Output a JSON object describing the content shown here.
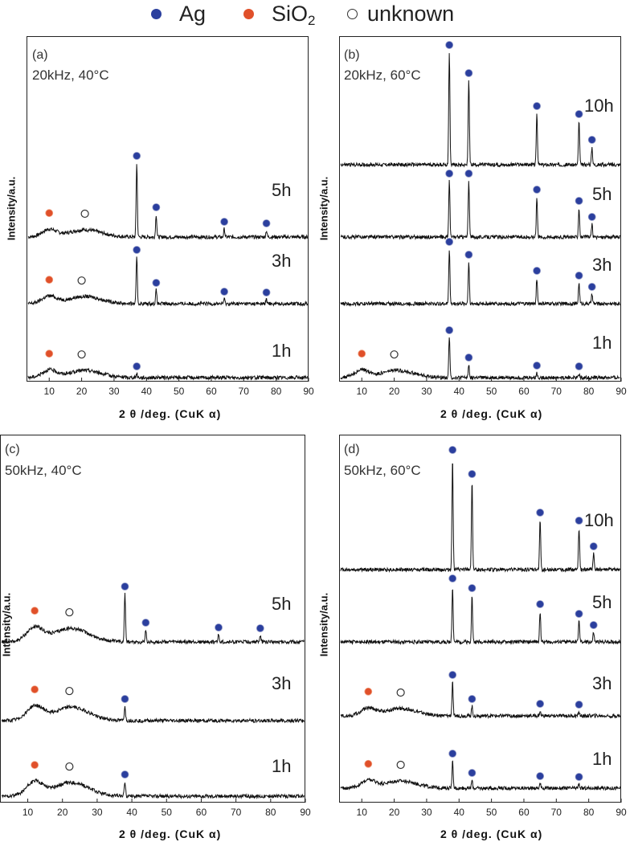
{
  "legend": {
    "items": [
      {
        "label": "Ag",
        "color": "#2b3f9e",
        "marker": "filled"
      },
      {
        "label": "SiO",
        "sub": "2",
        "color": "#e0502a",
        "marker": "filled"
      },
      {
        "label": "unknown",
        "color": "#ffffff",
        "marker": "open"
      }
    ]
  },
  "common": {
    "ylabel": "Intensity/a.u.",
    "xlabel": "2 θ /deg. (CuK α)",
    "x_ticks": [
      10,
      20,
      30,
      40,
      50,
      60,
      70,
      80,
      90
    ],
    "xlim": [
      3,
      90
    ]
  },
  "chart_data": [
    {
      "type": "line",
      "panel": "(a)",
      "title": "20kHz, 40°C",
      "xlabel": "2 θ /deg. (CuK α)",
      "ylabel": "Intensity/a.u.",
      "x_ticks": [
        10,
        20,
        30,
        40,
        50,
        60,
        70,
        80,
        90
      ],
      "series": [
        {
          "name": "5h",
          "peaks": [
            {
              "x": 37,
              "h": 92,
              "phase": "Ag"
            },
            {
              "x": 43,
              "h": 28,
              "phase": "Ag"
            },
            {
              "x": 64,
              "h": 10,
              "phase": "Ag"
            },
            {
              "x": 77,
              "h": 8,
              "phase": "Ag"
            }
          ],
          "markers": [
            {
              "x": 10,
              "phase": "SiO2"
            },
            {
              "x": 21,
              "phase": "unknown"
            },
            {
              "x": 37,
              "phase": "Ag"
            },
            {
              "x": 43,
              "phase": "Ag"
            },
            {
              "x": 64,
              "phase": "Ag"
            },
            {
              "x": 77,
              "phase": "Ag"
            }
          ]
        },
        {
          "name": "3h",
          "peaks": [
            {
              "x": 37,
              "h": 58,
              "phase": "Ag"
            },
            {
              "x": 43,
              "h": 17,
              "phase": "Ag"
            },
            {
              "x": 64,
              "h": 6,
              "phase": "Ag"
            },
            {
              "x": 77,
              "h": 5,
              "phase": "Ag"
            }
          ],
          "markers": [
            {
              "x": 10,
              "phase": "SiO2"
            },
            {
              "x": 20,
              "phase": "unknown"
            },
            {
              "x": 37,
              "phase": "Ag"
            },
            {
              "x": 43,
              "phase": "Ag"
            },
            {
              "x": 64,
              "phase": "Ag"
            },
            {
              "x": 77,
              "phase": "Ag"
            }
          ]
        },
        {
          "name": "1h",
          "peaks": [
            {
              "x": 37,
              "h": 5,
              "phase": "Ag"
            }
          ],
          "markers": [
            {
              "x": 10,
              "phase": "SiO2"
            },
            {
              "x": 20,
              "phase": "unknown"
            },
            {
              "x": 37,
              "phase": "Ag"
            }
          ]
        }
      ]
    },
    {
      "type": "line",
      "panel": "(b)",
      "title": "20kHz, 60°C",
      "xlabel": "2 θ /deg. (CuK α)",
      "ylabel": "Intensity/a.u.",
      "x_ticks": [
        10,
        20,
        30,
        40,
        50,
        60,
        70,
        80,
        90
      ],
      "series": [
        {
          "name": "10h",
          "peaks": [
            {
              "x": 37,
              "h": 140,
              "phase": "Ag"
            },
            {
              "x": 43,
              "h": 105,
              "phase": "Ag"
            },
            {
              "x": 64,
              "h": 64,
              "phase": "Ag"
            },
            {
              "x": 77,
              "h": 54,
              "phase": "Ag"
            },
            {
              "x": 81,
              "h": 22,
              "phase": "Ag"
            }
          ],
          "markers": [
            {
              "x": 37,
              "phase": "Ag"
            },
            {
              "x": 43,
              "phase": "Ag"
            },
            {
              "x": 64,
              "phase": "Ag"
            },
            {
              "x": 77,
              "phase": "Ag"
            },
            {
              "x": 81,
              "phase": "Ag"
            }
          ]
        },
        {
          "name": "5h",
          "peaks": [
            {
              "x": 37,
              "h": 70,
              "phase": "Ag"
            },
            {
              "x": 43,
              "h": 70,
              "phase": "Ag"
            },
            {
              "x": 64,
              "h": 50,
              "phase": "Ag"
            },
            {
              "x": 77,
              "h": 36,
              "phase": "Ag"
            },
            {
              "x": 81,
              "h": 16,
              "phase": "Ag"
            }
          ],
          "markers": [
            {
              "x": 37,
              "phase": "Ag"
            },
            {
              "x": 43,
              "phase": "Ag"
            },
            {
              "x": 64,
              "phase": "Ag"
            },
            {
              "x": 77,
              "phase": "Ag"
            },
            {
              "x": 81,
              "phase": "Ag"
            }
          ]
        },
        {
          "name": "3h",
          "peaks": [
            {
              "x": 37,
              "h": 68,
              "phase": "Ag"
            },
            {
              "x": 43,
              "h": 52,
              "phase": "Ag"
            },
            {
              "x": 64,
              "h": 32,
              "phase": "Ag"
            },
            {
              "x": 77,
              "h": 26,
              "phase": "Ag"
            },
            {
              "x": 81,
              "h": 12,
              "phase": "Ag"
            }
          ],
          "markers": [
            {
              "x": 37,
              "phase": "Ag"
            },
            {
              "x": 43,
              "phase": "Ag"
            },
            {
              "x": 64,
              "phase": "Ag"
            },
            {
              "x": 77,
              "phase": "Ag"
            },
            {
              "x": 81,
              "phase": "Ag"
            }
          ]
        },
        {
          "name": "1h",
          "peaks": [
            {
              "x": 37,
              "h": 50,
              "phase": "Ag"
            },
            {
              "x": 43,
              "h": 16,
              "phase": "Ag"
            },
            {
              "x": 64,
              "h": 6,
              "phase": "Ag"
            },
            {
              "x": 77,
              "h": 5,
              "phase": "Ag"
            }
          ],
          "markers": [
            {
              "x": 10,
              "phase": "SiO2"
            },
            {
              "x": 20,
              "phase": "unknown"
            },
            {
              "x": 37,
              "phase": "Ag"
            },
            {
              "x": 43,
              "phase": "Ag"
            },
            {
              "x": 64,
              "phase": "Ag"
            },
            {
              "x": 77,
              "phase": "Ag"
            }
          ]
        }
      ]
    },
    {
      "type": "line",
      "panel": "(c)",
      "title": "50kHz, 40°C",
      "xlabel": "2 θ /deg. (CuK α)",
      "ylabel": "Intensity/a.u.",
      "x_ticks": [
        10,
        20,
        30,
        40,
        50,
        60,
        70,
        80,
        90
      ],
      "series": [
        {
          "name": "5h",
          "peaks": [
            {
              "x": 38,
              "h": 60,
              "phase": "Ag"
            },
            {
              "x": 44,
              "h": 15,
              "phase": "Ag"
            },
            {
              "x": 65,
              "h": 9,
              "phase": "Ag"
            },
            {
              "x": 77,
              "h": 8,
              "phase": "Ag"
            }
          ],
          "markers": [
            {
              "x": 12,
              "phase": "SiO2"
            },
            {
              "x": 22,
              "phase": "unknown"
            },
            {
              "x": 38,
              "phase": "Ag"
            },
            {
              "x": 44,
              "phase": "Ag"
            },
            {
              "x": 65,
              "phase": "Ag"
            },
            {
              "x": 77,
              "phase": "Ag"
            }
          ]
        },
        {
          "name": "3h",
          "peaks": [
            {
              "x": 38,
              "h": 18,
              "phase": "Ag"
            }
          ],
          "markers": [
            {
              "x": 12,
              "phase": "SiO2"
            },
            {
              "x": 22,
              "phase": "unknown"
            },
            {
              "x": 38,
              "phase": "Ag"
            }
          ]
        },
        {
          "name": "1h",
          "peaks": [
            {
              "x": 38,
              "h": 18,
              "phase": "Ag"
            }
          ],
          "markers": [
            {
              "x": 12,
              "phase": "SiO2"
            },
            {
              "x": 22,
              "phase": "unknown"
            },
            {
              "x": 38,
              "phase": "Ag"
            }
          ]
        }
      ]
    },
    {
      "type": "line",
      "panel": "(d)",
      "title": "50kHz, 60°C",
      "xlabel": "2 θ /deg. (CuK α)",
      "ylabel": "Intensity/a.u.",
      "x_ticks": [
        10,
        20,
        30,
        40,
        50,
        60,
        70,
        80,
        90
      ],
      "series": [
        {
          "name": "10h",
          "peaks": [
            {
              "x": 38,
              "h": 140,
              "phase": "Ag"
            },
            {
              "x": 44,
              "h": 110,
              "phase": "Ag"
            },
            {
              "x": 65,
              "h": 62,
              "phase": "Ag"
            },
            {
              "x": 77,
              "h": 52,
              "phase": "Ag"
            },
            {
              "x": 81.5,
              "h": 20,
              "phase": "Ag"
            }
          ],
          "markers": [
            {
              "x": 38,
              "phase": "Ag"
            },
            {
              "x": 44,
              "phase": "Ag"
            },
            {
              "x": 65,
              "phase": "Ag"
            },
            {
              "x": 77,
              "phase": "Ag"
            },
            {
              "x": 81.5,
              "phase": "Ag"
            }
          ]
        },
        {
          "name": "5h",
          "peaks": [
            {
              "x": 38,
              "h": 70,
              "phase": "Ag"
            },
            {
              "x": 44,
              "h": 58,
              "phase": "Ag"
            },
            {
              "x": 65,
              "h": 38,
              "phase": "Ag"
            },
            {
              "x": 77,
              "h": 26,
              "phase": "Ag"
            },
            {
              "x": 81.5,
              "h": 12,
              "phase": "Ag"
            }
          ],
          "markers": [
            {
              "x": 38,
              "phase": "Ag"
            },
            {
              "x": 44,
              "phase": "Ag"
            },
            {
              "x": 65,
              "phase": "Ag"
            },
            {
              "x": 77,
              "phase": "Ag"
            },
            {
              "x": 81.5,
              "phase": "Ag"
            }
          ]
        },
        {
          "name": "3h",
          "peaks": [
            {
              "x": 38,
              "h": 42,
              "phase": "Ag"
            },
            {
              "x": 44,
              "h": 12,
              "phase": "Ag"
            },
            {
              "x": 65,
              "h": 6,
              "phase": "Ag"
            },
            {
              "x": 77,
              "h": 5,
              "phase": "Ag"
            }
          ],
          "markers": [
            {
              "x": 12,
              "phase": "SiO2"
            },
            {
              "x": 22,
              "phase": "unknown"
            },
            {
              "x": 38,
              "phase": "Ag"
            },
            {
              "x": 44,
              "phase": "Ag"
            },
            {
              "x": 65,
              "phase": "Ag"
            },
            {
              "x": 77,
              "phase": "Ag"
            }
          ]
        },
        {
          "name": "1h",
          "peaks": [
            {
              "x": 38,
              "h": 34,
              "phase": "Ag"
            },
            {
              "x": 44,
              "h": 10,
              "phase": "Ag"
            },
            {
              "x": 65,
              "h": 6,
              "phase": "Ag"
            },
            {
              "x": 77,
              "h": 5,
              "phase": "Ag"
            }
          ],
          "markers": [
            {
              "x": 12,
              "phase": "SiO2"
            },
            {
              "x": 22,
              "phase": "unknown"
            },
            {
              "x": 38,
              "phase": "Ag"
            },
            {
              "x": 44,
              "phase": "Ag"
            },
            {
              "x": 65,
              "phase": "Ag"
            },
            {
              "x": 77,
              "phase": "Ag"
            }
          ]
        }
      ]
    }
  ]
}
